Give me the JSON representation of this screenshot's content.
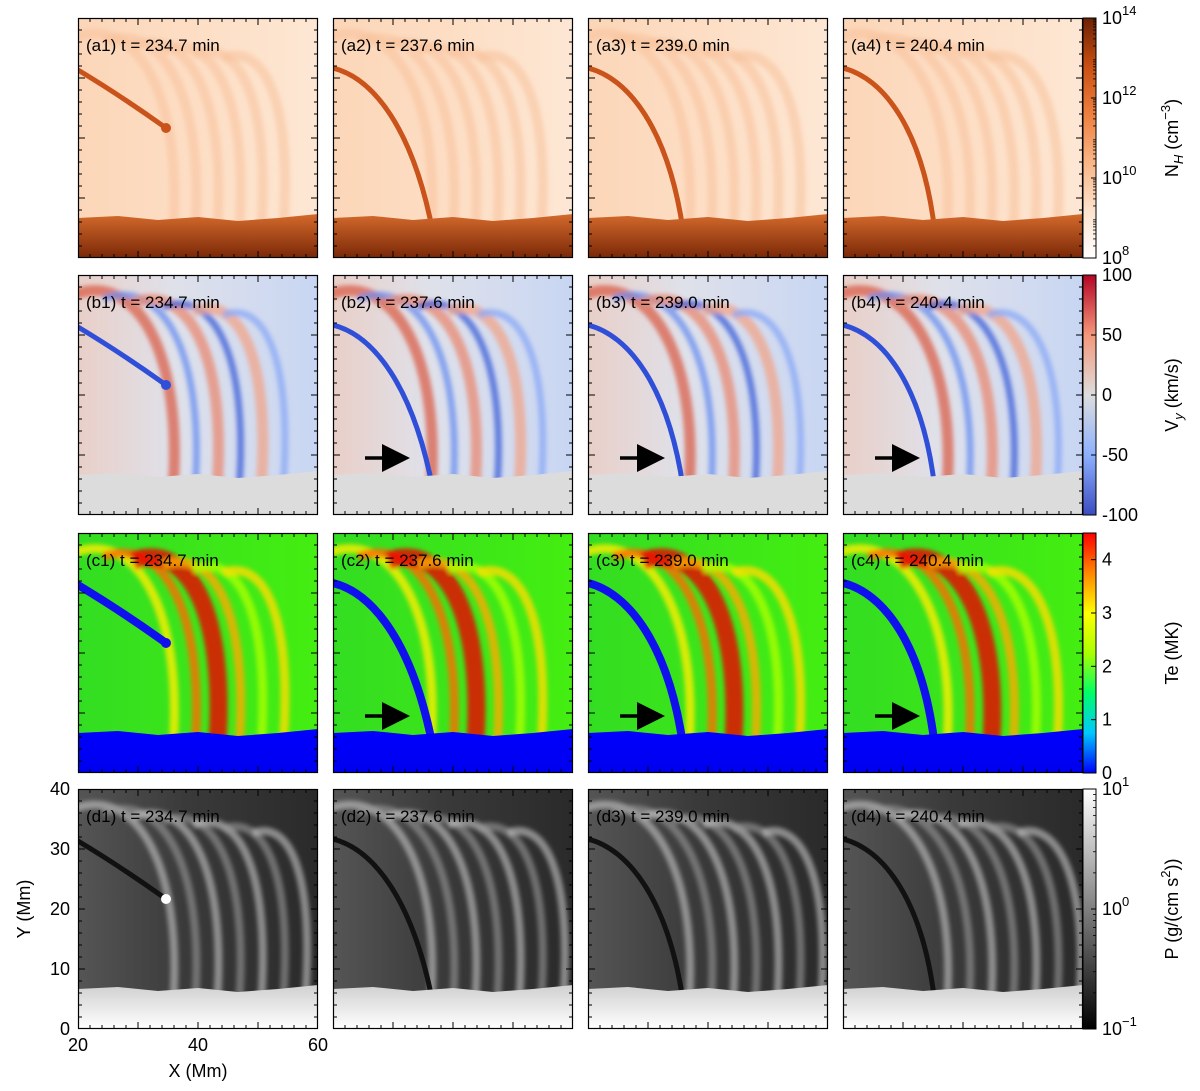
{
  "chart_data": {
    "type": "heatmap",
    "times": [
      "t = 234.7 min",
      "t = 237.6 min",
      "t = 239.0 min",
      "t = 240.4 min"
    ],
    "rows": [
      {
        "id": "a",
        "quantity": "density",
        "labels": [
          "(a1)",
          "(a2)",
          "(a3)",
          "(a4)"
        ],
        "colorbar": {
          "title": "N_H (cm^-3)",
          "title_main": "N",
          "title_sub": "H",
          "title_rest": " (cm",
          "title_sup": "−3",
          "title_end": ")",
          "scale": "log",
          "range": [
            100000000.0,
            100000000000000.0
          ],
          "ticks": [
            {
              "value": 8,
              "base": "10",
              "exp": "8"
            },
            {
              "value": 10,
              "base": "10",
              "exp": "10"
            },
            {
              "value": 12,
              "base": "10",
              "exp": "12"
            },
            {
              "value": 14,
              "base": "10",
              "exp": "14"
            }
          ],
          "colors": [
            "#ffffff",
            "#fde2cc",
            "#f8b585",
            "#ee7f3f",
            "#c84f12",
            "#6b2004"
          ]
        },
        "background": "#fbd0ae",
        "lower_layer": "#c85a1a",
        "feature": "#d46a2c"
      },
      {
        "id": "b",
        "quantity": "vertical velocity",
        "labels": [
          "(b1)",
          "(b2)",
          "(b3)",
          "(b4)"
        ],
        "colorbar": {
          "title": "V_y (km/s)",
          "title_main": "V",
          "title_sub": "y",
          "title_rest": " (km/s)",
          "scale": "linear",
          "range": [
            -100,
            100
          ],
          "ticks": [
            {
              "value": 100,
              "label": "100"
            },
            {
              "value": 50,
              "label": "50"
            },
            {
              "value": 0,
              "label": "0"
            },
            {
              "value": -50,
              "label": "-50"
            },
            {
              "value": -100,
              "label": "-100"
            }
          ],
          "colors": [
            "#3b4cc0",
            "#8db0fe",
            "#dddddd",
            "#f4987a",
            "#b40426"
          ]
        },
        "background": "#dfe3ea",
        "lower_layer": "#dcdcdc",
        "arrows": [
          false,
          true,
          true,
          true
        ]
      },
      {
        "id": "c",
        "quantity": "temperature",
        "labels": [
          "(c1)",
          "(c2)",
          "(c3)",
          "(c4)"
        ],
        "colorbar": {
          "title": "Te (MK)",
          "scale": "linear",
          "range": [
            0,
            4.5
          ],
          "ticks": [
            {
              "value": 0,
              "label": "0"
            },
            {
              "value": 1,
              "label": "1"
            },
            {
              "value": 2,
              "label": "2"
            },
            {
              "value": 3,
              "label": "3"
            },
            {
              "value": 4,
              "label": "4"
            }
          ],
          "colors": [
            "#0000ff",
            "#00c8ff",
            "#00ff66",
            "#aaff00",
            "#ffff00",
            "#ff8800",
            "#ff0000"
          ]
        },
        "background": "#22dd22",
        "lower_layer": "#0a0aff",
        "arrows": [
          false,
          true,
          true,
          true
        ]
      },
      {
        "id": "d",
        "quantity": "pressure",
        "labels": [
          "(d1)",
          "(d2)",
          "(d3)",
          "(d4)"
        ],
        "colorbar": {
          "title": "P (g/(cm s^2))",
          "title_main": "P (g/(cm s",
          "title_sup": "2",
          "title_end": "))",
          "scale": "log",
          "range": [
            0.1,
            10
          ],
          "ticks": [
            {
              "value": 1,
              "base": "10",
              "exp": "1"
            },
            {
              "value": 0,
              "base": "10",
              "exp": "0"
            },
            {
              "value": -1,
              "base": "10",
              "exp": "−1"
            }
          ],
          "colors": [
            "#000000",
            "#555555",
            "#aaaaaa",
            "#ffffff"
          ]
        },
        "background": "#333333",
        "lower_layer": "#f0f0f0"
      }
    ],
    "x_axis": {
      "label": "X (Mm)",
      "range": [
        20,
        60
      ],
      "ticks": [
        "20",
        "40",
        "60"
      ]
    },
    "y_axis": {
      "label": "Y (Mm)",
      "range": [
        0,
        40
      ],
      "ticks": [
        "0",
        "10",
        "20",
        "30",
        "40"
      ]
    }
  }
}
